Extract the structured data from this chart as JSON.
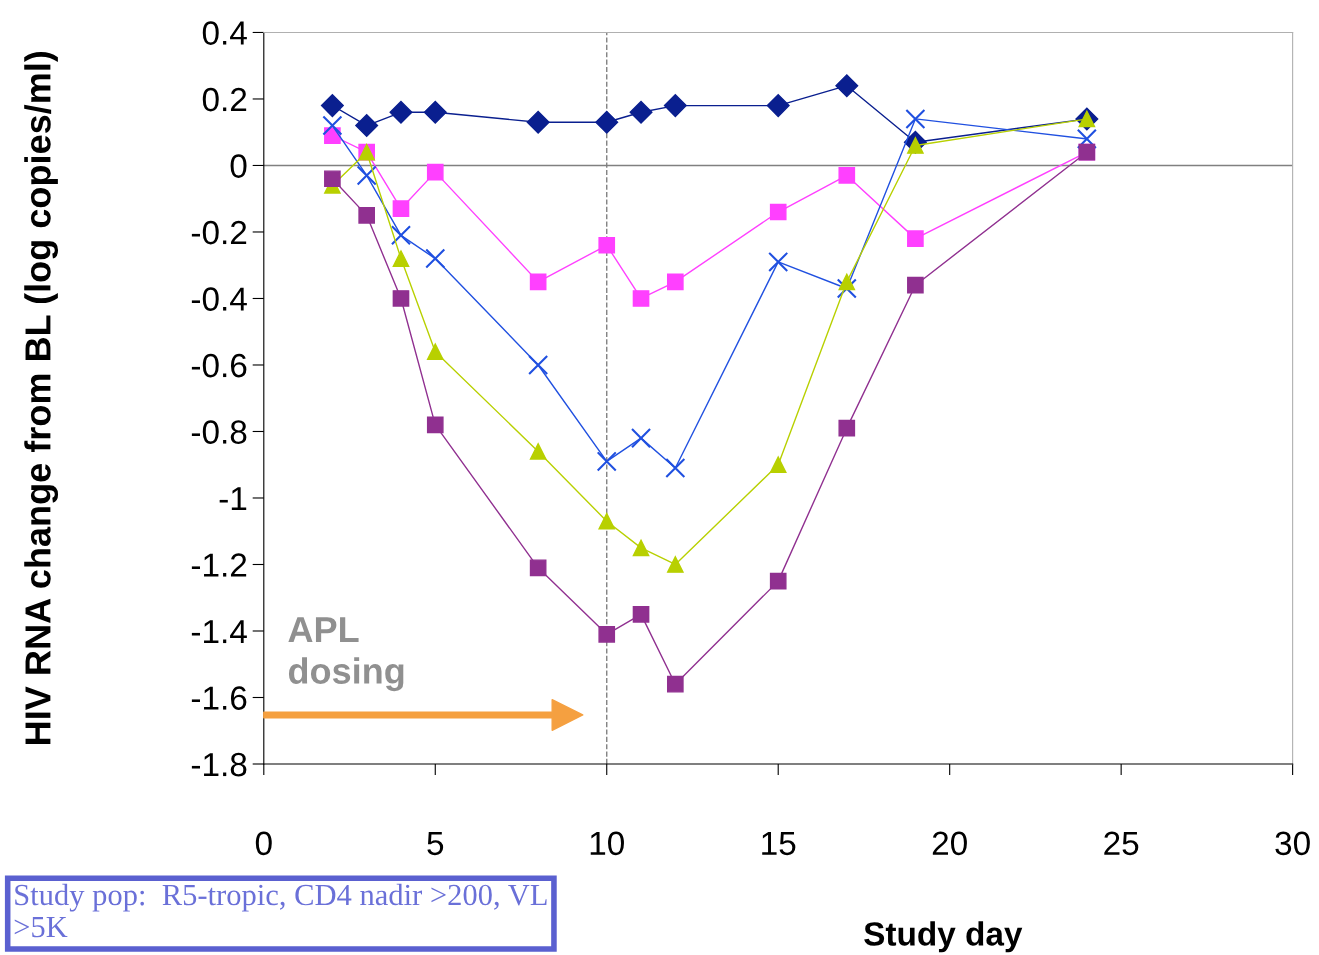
{
  "chart_data": {
    "type": "line",
    "xlabel": "Study day",
    "ylabel": "HIV RNA change from BL (log copies/ml)",
    "xlim": [
      0,
      30
    ],
    "xticks": [
      0,
      5,
      10,
      15,
      20,
      25,
      30
    ],
    "ylim": [
      -1.8,
      0.4
    ],
    "yticks": [
      -1.8,
      -1.6,
      -1.4,
      -1.2,
      -1,
      -0.8,
      -0.6,
      -0.4,
      -0.2,
      0,
      0.2,
      0.4
    ],
    "grid": false,
    "legend": false,
    "x": [
      2,
      3,
      4,
      5,
      8,
      10,
      11,
      12,
      15,
      17,
      19,
      24
    ],
    "series": [
      {
        "color": "#0a1f8f",
        "marker": "diamond",
        "values": [
          0.18,
          0.12,
          0.16,
          0.16,
          0.13,
          0.13,
          0.16,
          0.18,
          0.18,
          0.24,
          0.07,
          0.14
        ]
      },
      {
        "color": "#ff40ff",
        "marker": "square",
        "values": [
          0.09,
          0.04,
          -0.13,
          -0.02,
          -0.35,
          -0.24,
          -0.4,
          -0.35,
          -0.14,
          -0.03,
          -0.22,
          0.04
        ]
      },
      {
        "color": "#2050e0",
        "marker": "cross",
        "values": [
          0.12,
          -0.03,
          -0.21,
          -0.28,
          -0.6,
          -0.89,
          -0.82,
          -0.91,
          -0.29,
          -0.37,
          0.14,
          0.08
        ]
      },
      {
        "color": "#b8d000",
        "marker": "triangle",
        "values": [
          -0.06,
          0.04,
          -0.28,
          -0.56,
          -0.86,
          -1.07,
          -1.15,
          -1.2,
          -0.9,
          -0.35,
          0.06,
          0.14
        ]
      },
      {
        "color": "#903090",
        "marker": "square",
        "values": [
          -0.04,
          -0.15,
          -0.4,
          -0.78,
          -1.21,
          -1.41,
          -1.35,
          -1.56,
          -1.25,
          -0.79,
          -0.36,
          0.04
        ]
      }
    ],
    "ref_lines": [
      {
        "axis": "x",
        "value": 10,
        "color": "#808080",
        "line_style": "dashed"
      },
      {
        "axis": "y",
        "value": 0,
        "color": "#808080",
        "line_style": "solid"
      }
    ],
    "annotations": [
      "APL dosing",
      "Study pop:  R5-tropic, CD4 nadir >200, VL >5K"
    ]
  }
}
